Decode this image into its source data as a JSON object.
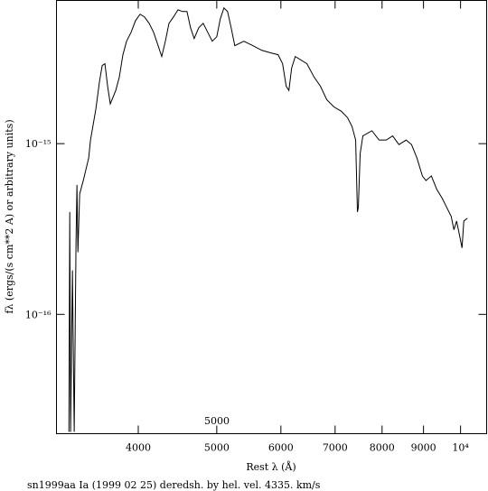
{
  "chart_data": {
    "type": "line",
    "title": "sn1999aa Ia (1999 02 25) deredsh. by hel. vel.  4335. km/s",
    "xlabel": "Rest λ (Å)",
    "ylabel": "fλ (ergs/(s cm**2 A) or arbitrary units)",
    "annotation": "5000",
    "xscale": "log",
    "yscale": "log",
    "color": "#000000",
    "xlim": [
      3170,
      10770
    ],
    "ylim": [
      2e-17,
      6.9e-15
    ],
    "xticks": [
      4000,
      5000,
      6000,
      7000,
      8000,
      9000,
      {
        "value": 10000,
        "label": "10⁴"
      }
    ],
    "yticks": [
      {
        "value": 1e-16,
        "label": "10⁻¹⁶"
      },
      {
        "value": 1e-15,
        "label": "10⁻¹⁵"
      }
    ],
    "x": [
      3284,
      3292,
      3300,
      3317,
      3334,
      3351,
      3360,
      3369,
      3386,
      3421,
      3474,
      3492,
      3546,
      3582,
      3610,
      3638,
      3666,
      3694,
      3752,
      3790,
      3829,
      3869,
      3919,
      3969,
      4021,
      4072,
      4125,
      4178,
      4232,
      4276,
      4320,
      4365,
      4421,
      4478,
      4536,
      4594,
      4641,
      4689,
      4750,
      4811,
      4873,
      4936,
      5000,
      5051,
      5103,
      5156,
      5209,
      5263,
      5400,
      5540,
      5684,
      5831,
      5952,
      6029,
      6091,
      6138,
      6186,
      6250,
      6461,
      6595,
      6714,
      6836,
      6978,
      7122,
      7252,
      7345,
      7421,
      7459,
      7478,
      7517,
      7575,
      7772,
      7932,
      8097,
      8244,
      8393,
      8566,
      8699,
      8834,
      8971,
      9064,
      9204,
      9347,
      9492,
      9614,
      9738,
      9813,
      9889,
      9991,
      10042,
      10093,
      10198
    ],
    "values": [
      2.05e-17,
      3.98e-16,
      2.05e-17,
      1.81e-16,
      2.05e-17,
      2.61e-16,
      5.73e-16,
      2.31e-16,
      5.07e-16,
      6.08e-16,
      8.24e-16,
      1.05e-15,
      1.6e-15,
      2.31e-15,
      2.87e-15,
      2.94e-15,
      2.17e-15,
      1.71e-15,
      2.05e-15,
      2.45e-15,
      3.32e-15,
      3.98e-15,
      4.49e-15,
      5.26e-15,
      5.73e-15,
      5.52e-15,
      5.07e-15,
      4.49e-15,
      3.75e-15,
      3.24e-15,
      3.98e-15,
      5.07e-15,
      5.52e-15,
      6.08e-15,
      5.94e-15,
      5.94e-15,
      4.77e-15,
      4.13e-15,
      4.77e-15,
      5.07e-15,
      4.49e-15,
      3.98e-15,
      4.23e-15,
      5.39e-15,
      6.24e-15,
      5.94e-15,
      4.77e-15,
      3.75e-15,
      3.98e-15,
      3.75e-15,
      3.52e-15,
      3.4e-15,
      3.32e-15,
      2.94e-15,
      2.17e-15,
      2.05e-15,
      2.77e-15,
      3.24e-15,
      2.94e-15,
      2.45e-15,
      2.17e-15,
      1.81e-15,
      1.64e-15,
      1.55e-15,
      1.42e-15,
      1.26e-15,
      1.05e-15,
      3.98e-16,
      4.23e-16,
      8.75e-16,
      1.11e-15,
      1.19e-15,
      1.05e-15,
      1.05e-15,
      1.11e-15,
      9.88e-16,
      1.05e-15,
      9.88e-16,
      8.24e-16,
      6.47e-16,
      6.08e-16,
      6.47e-16,
      5.39e-16,
      4.78e-16,
      4.23e-16,
      3.75e-16,
      3.13e-16,
      3.52e-16,
      2.77e-16,
      2.45e-16,
      3.52e-16,
      3.66e-16
    ]
  }
}
